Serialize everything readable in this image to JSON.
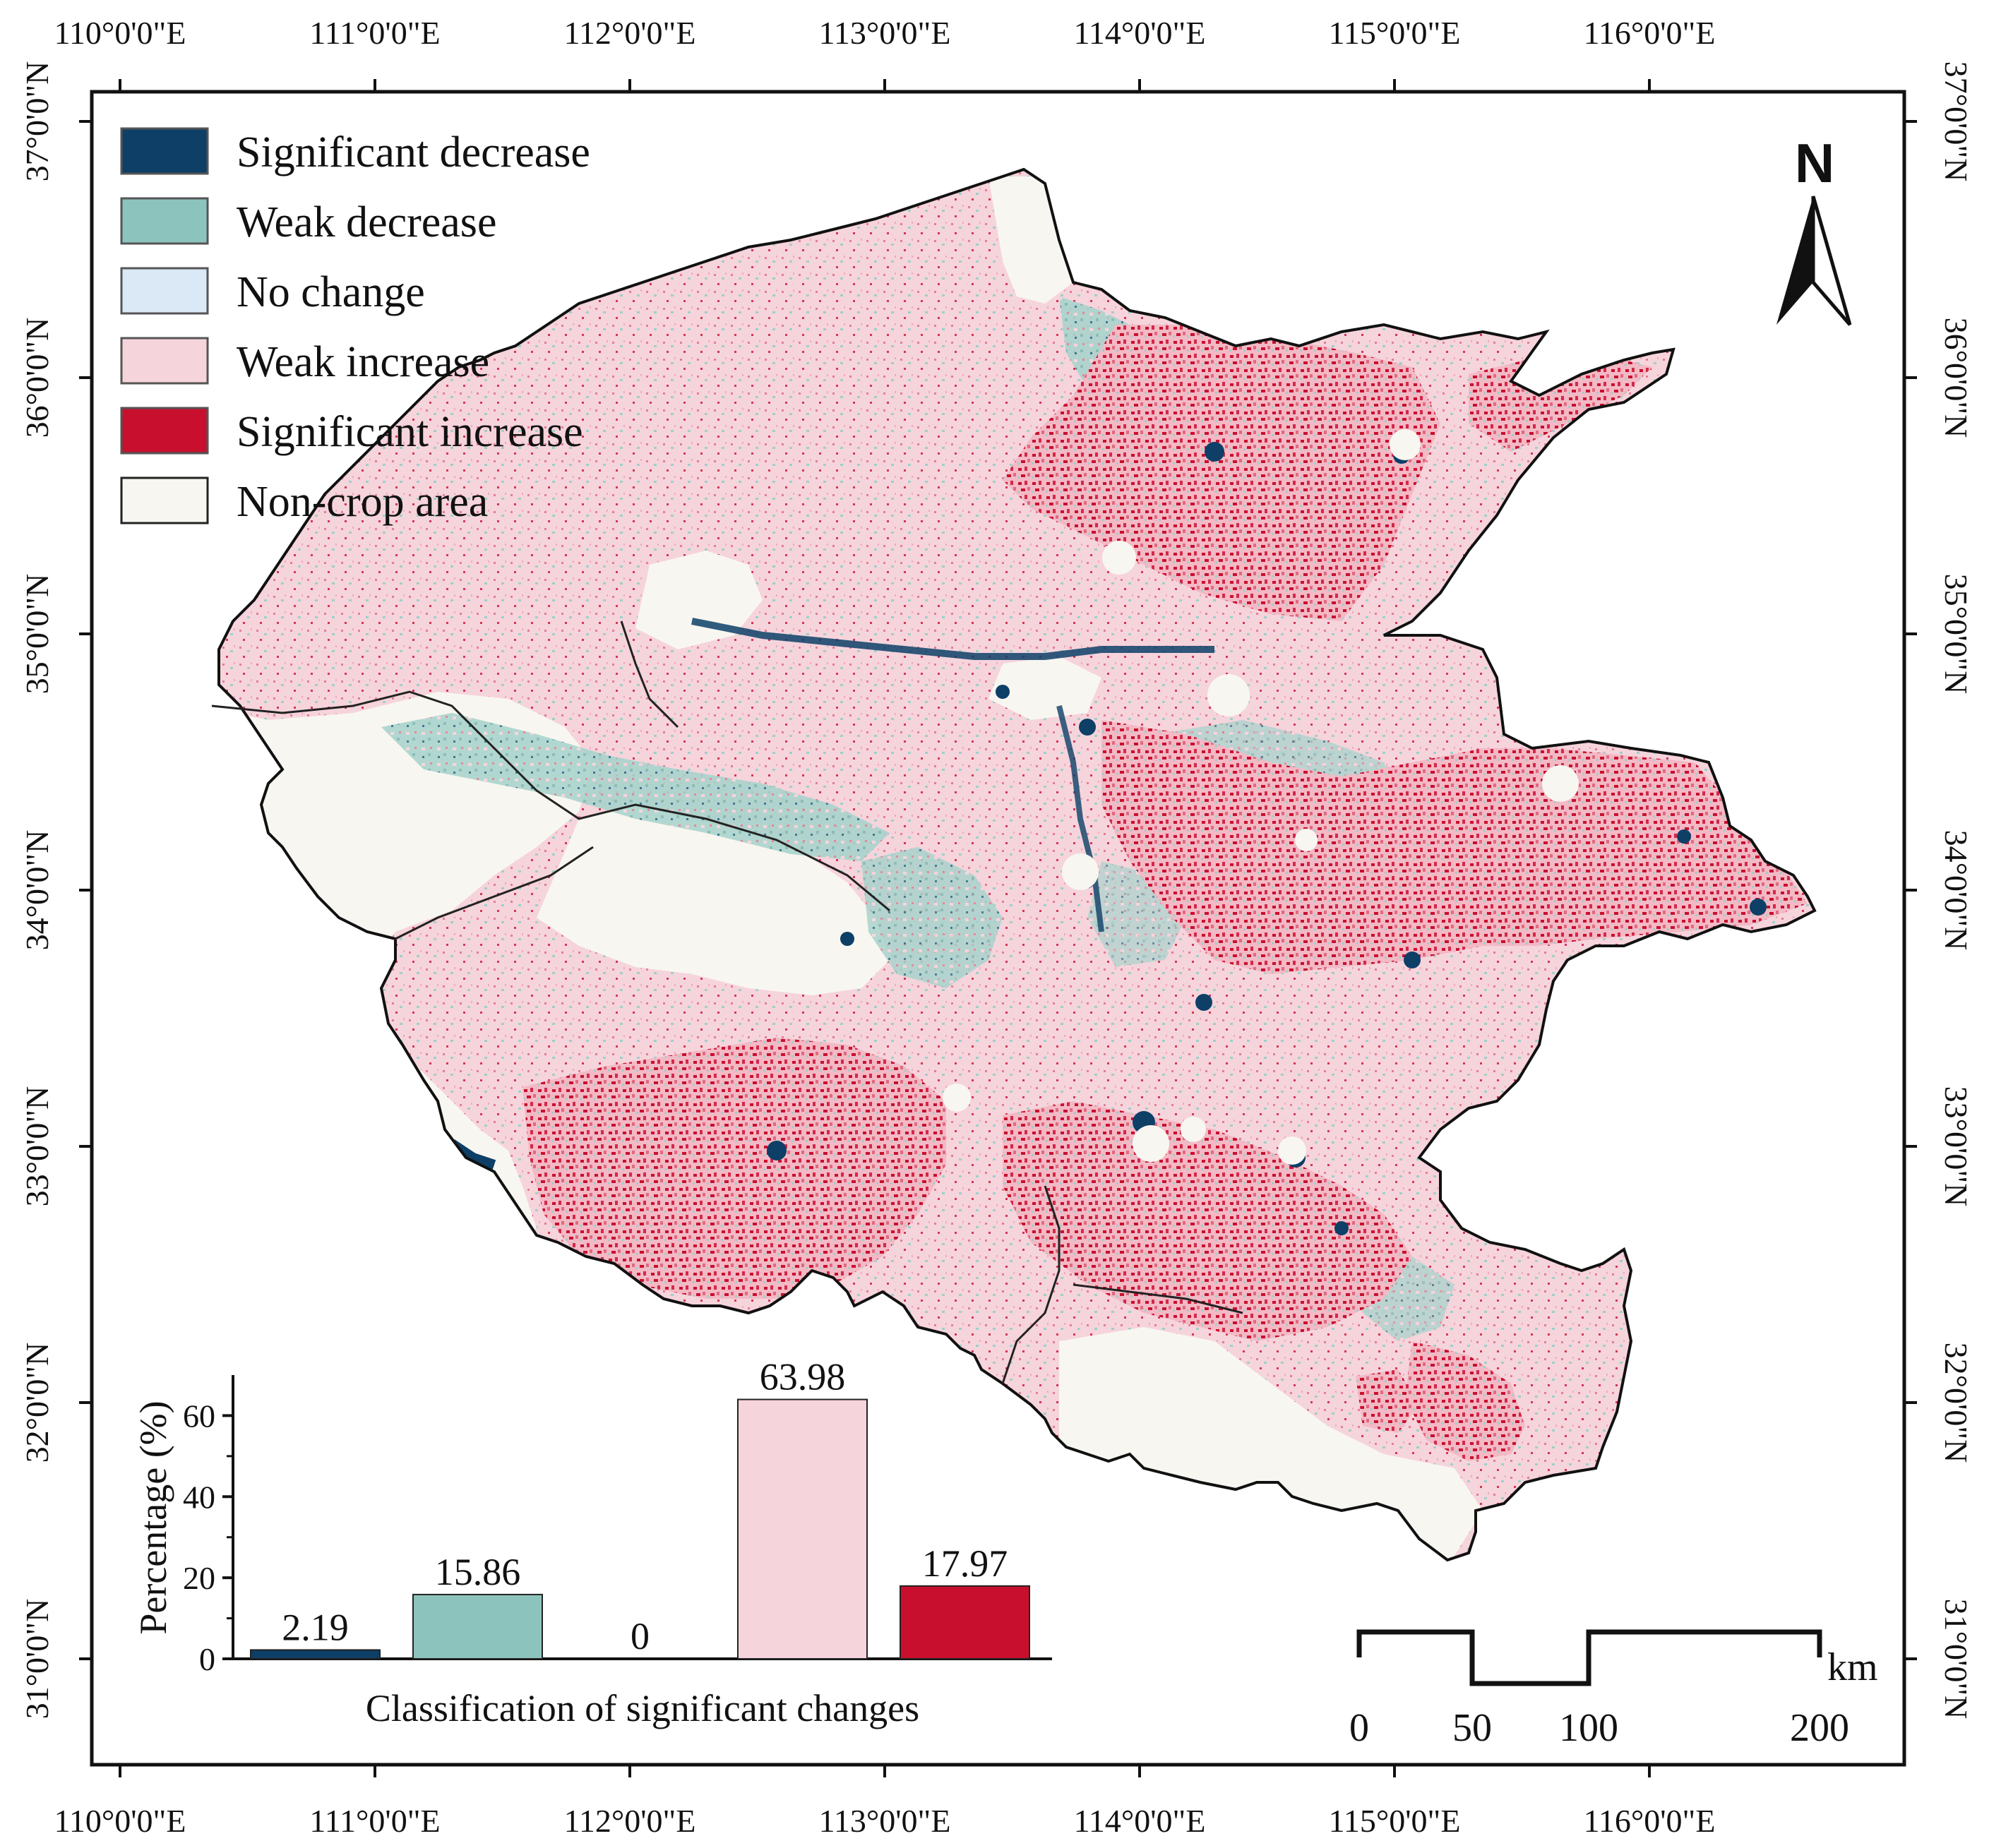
{
  "map": {
    "lon_labels": [
      "110°0'0\"E",
      "111°0'0\"E",
      "112°0'0\"E",
      "113°0'0\"E",
      "114°0'0\"E",
      "115°0'0\"E",
      "116°0'0\"E"
    ],
    "lat_labels": [
      "37°0'0\"N",
      "36°0'0\"N",
      "35°0'0\"N",
      "34°0'0\"N",
      "33°0'0\"N",
      "32°0'0\"N",
      "31°0'0\"N"
    ],
    "north_arrow_label": "N"
  },
  "legend": {
    "items": [
      {
        "label": "Significant decrease",
        "color": "#0d3f67"
      },
      {
        "label": "Weak decrease",
        "color": "#8cc4bd"
      },
      {
        "label": "No change",
        "color": "#dbe8f6"
      },
      {
        "label": "Weak increase",
        "color": "#f6d4dc"
      },
      {
        "label": "Significant increase",
        "color": "#c8102e"
      },
      {
        "label": "Non-crop area",
        "color": "#f8f6f0"
      }
    ]
  },
  "chart_data": {
    "type": "bar",
    "categories": [
      "Significant decrease",
      "Weak decrease",
      "No change",
      "Weak increase",
      "Significant increase"
    ],
    "values": [
      2.19,
      15.86,
      0,
      63.98,
      17.97
    ],
    "value_labels": [
      "2.19",
      "15.86",
      "0",
      "63.98",
      "17.97"
    ],
    "colors": [
      "#0d3f67",
      "#8cc4bd",
      "#dbe8f6",
      "#f6d4dc",
      "#c8102e"
    ],
    "ylabel": "Percentage (%)",
    "xlabel": "Classification of significant changes",
    "ylim": [
      0,
      70
    ],
    "yticks": [
      0,
      20,
      40,
      60
    ],
    "grid": false
  },
  "scale_bar": {
    "labels": [
      "0",
      "50",
      "100",
      "200"
    ],
    "unit": "km"
  }
}
